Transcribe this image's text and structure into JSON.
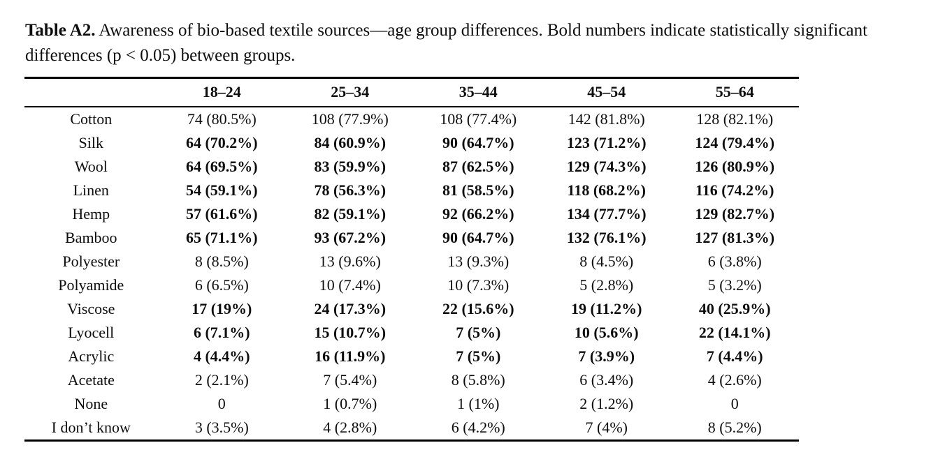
{
  "caption": {
    "label": "Table A2.",
    "text": "Awareness of bio-based textile sources—age group differences. Bold numbers indicate statistically significant differences (p < 0.05) between groups."
  },
  "table": {
    "columns": [
      "18–24",
      "25–34",
      "35–44",
      "45–54",
      "55–64"
    ],
    "rows": [
      {
        "label": "Cotton",
        "bold": false,
        "values": [
          "74 (80.5%)",
          "108 (77.9%)",
          "108 (77.4%)",
          "142 (81.8%)",
          "128 (82.1%)"
        ]
      },
      {
        "label": "Silk",
        "bold": true,
        "values": [
          "64 (70.2%)",
          "84 (60.9%)",
          "90 (64.7%)",
          "123 (71.2%)",
          "124 (79.4%)"
        ]
      },
      {
        "label": "Wool",
        "bold": true,
        "values": [
          "64 (69.5%)",
          "83 (59.9%)",
          "87 (62.5%)",
          "129 (74.3%)",
          "126 (80.9%)"
        ]
      },
      {
        "label": "Linen",
        "bold": true,
        "values": [
          "54 (59.1%)",
          "78 (56.3%)",
          "81 (58.5%)",
          "118 (68.2%)",
          "116 (74.2%)"
        ]
      },
      {
        "label": "Hemp",
        "bold": true,
        "values": [
          "57 (61.6%)",
          "82 (59.1%)",
          "92 (66.2%)",
          "134 (77.7%)",
          "129 (82.7%)"
        ]
      },
      {
        "label": "Bamboo",
        "bold": true,
        "values": [
          "65 (71.1%)",
          "93 (67.2%)",
          "90 (64.7%)",
          "132 (76.1%)",
          "127 (81.3%)"
        ]
      },
      {
        "label": "Polyester",
        "bold": false,
        "values": [
          "8 (8.5%)",
          "13 (9.6%)",
          "13 (9.3%)",
          "8 (4.5%)",
          "6 (3.8%)"
        ]
      },
      {
        "label": "Polyamide",
        "bold": false,
        "values": [
          "6 (6.5%)",
          "10 (7.4%)",
          "10 (7.3%)",
          "5 (2.8%)",
          "5 (3.2%)"
        ]
      },
      {
        "label": "Viscose",
        "bold": true,
        "values": [
          "17 (19%)",
          "24 (17.3%)",
          "22 (15.6%)",
          "19 (11.2%)",
          "40 (25.9%)"
        ]
      },
      {
        "label": "Lyocell",
        "bold": true,
        "values": [
          "6 (7.1%)",
          "15 (10.7%)",
          "7 (5%)",
          "10 (5.6%)",
          "22 (14.1%)"
        ]
      },
      {
        "label": "Acrylic",
        "bold": true,
        "values": [
          "4 (4.4%)",
          "16 (11.9%)",
          "7 (5%)",
          "7 (3.9%)",
          "7 (4.4%)"
        ]
      },
      {
        "label": "Acetate",
        "bold": false,
        "values": [
          "2 (2.1%)",
          "7 (5.4%)",
          "8 (5.8%)",
          "6 (3.4%)",
          "4 (2.6%)"
        ]
      },
      {
        "label": "None",
        "bold": false,
        "values": [
          "0",
          "1 (0.7%)",
          "1 (1%)",
          "2 (1.2%)",
          "0"
        ]
      },
      {
        "label": "I don’t know",
        "bold": false,
        "values": [
          "3 (3.5%)",
          "4 (2.8%)",
          "6 (4.2%)",
          "7 (4%)",
          "8 (5.2%)"
        ]
      }
    ]
  }
}
